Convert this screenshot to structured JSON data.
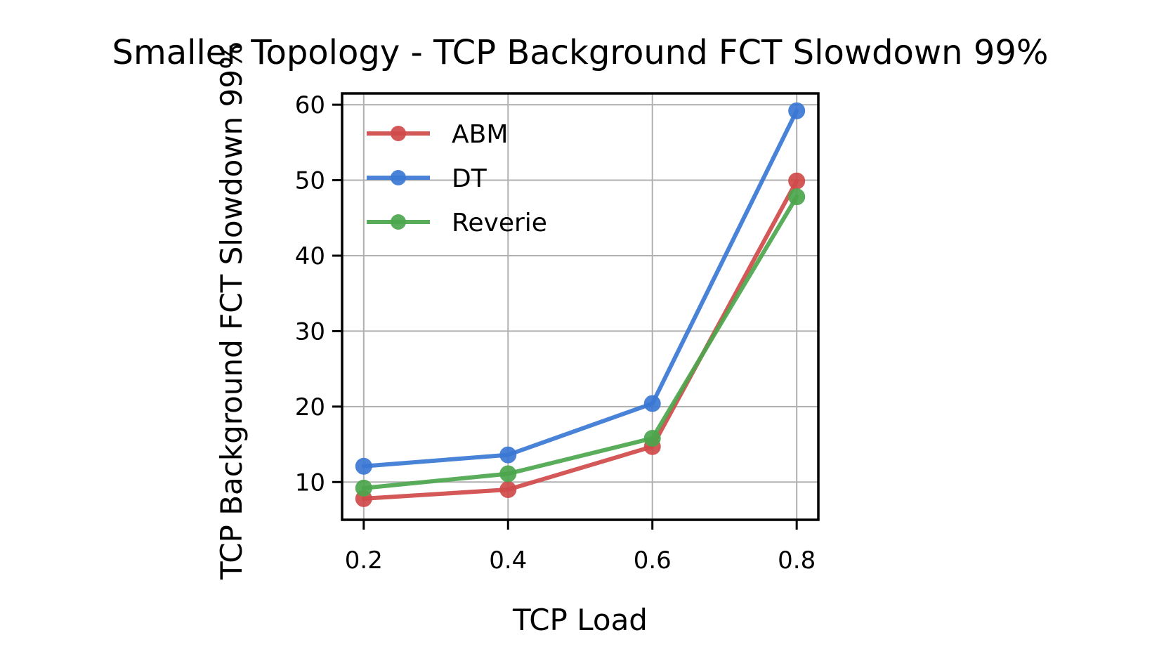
{
  "chart_data": {
    "type": "line",
    "title": "Smaller Topology - TCP Background FCT Slowdown 99%",
    "xlabel": "TCP Load",
    "ylabel": "TCP Background FCT Slowdown 99%",
    "x": [
      0.2,
      0.4,
      0.6,
      0.8
    ],
    "x_tick_labels": [
      "0.2",
      "0.4",
      "0.6",
      "0.8"
    ],
    "y_ticks": [
      10,
      20,
      30,
      40,
      50,
      60
    ],
    "y_tick_labels": [
      "10",
      "20",
      "30",
      "40",
      "50",
      "60"
    ],
    "xlim": [
      0.17,
      0.83
    ],
    "ylim": [
      5,
      61.5
    ],
    "grid": true,
    "legend_position": "upper-left",
    "series": [
      {
        "name": "ABM",
        "color": "#d04a4a",
        "values": [
          7.8,
          9.0,
          14.7,
          49.9
        ]
      },
      {
        "name": "DT",
        "color": "#3a78d4",
        "values": [
          12.1,
          13.6,
          20.4,
          59.2
        ]
      },
      {
        "name": "Reverie",
        "color": "#4ca64c",
        "values": [
          9.2,
          11.1,
          15.8,
          47.8
        ]
      }
    ]
  }
}
